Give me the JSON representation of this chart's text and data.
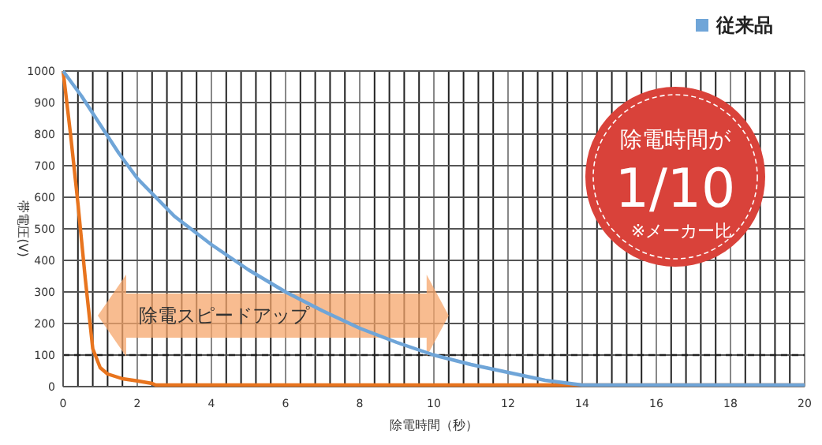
{
  "chart_data": {
    "type": "line",
    "xlabel": "除電時間（秒）",
    "ylabel": "帯電圧(V)",
    "xlim": [
      0,
      20
    ],
    "ylim": [
      0,
      1000
    ],
    "xticks": [
      0,
      {
        "value": 0.4,
        "label": null
      },
      {
        "value": 0.8,
        "label": null
      },
      {
        "value": 1.2,
        "label": null
      },
      {
        "value": 1.6,
        "label": null
      },
      2,
      {
        "value": 2.4,
        "label": null
      },
      {
        "value": 2.8,
        "label": null
      },
      {
        "value": 3.2,
        "label": null
      },
      {
        "value": 3.6,
        "label": null
      },
      4,
      {
        "value": 4.4,
        "label": null
      },
      {
        "value": 4.8,
        "label": null
      },
      {
        "value": 5.2,
        "label": null
      },
      {
        "value": 5.6,
        "label": null
      },
      6,
      {
        "value": 6.4,
        "label": null
      },
      {
        "value": 6.8,
        "label": null
      },
      {
        "value": 7.2,
        "label": null
      },
      {
        "value": 7.6,
        "label": null
      },
      8,
      {
        "value": 8.4,
        "label": null
      },
      {
        "value": 8.8,
        "label": null
      },
      {
        "value": 9.2,
        "label": null
      },
      {
        "value": 9.6,
        "label": null
      },
      10,
      {
        "value": 10.4,
        "label": null
      },
      {
        "value": 10.8,
        "label": null
      },
      {
        "value": 11.2,
        "label": null
      },
      {
        "value": 11.6,
        "label": null
      },
      12,
      {
        "value": 12.4,
        "label": null
      },
      {
        "value": 12.8,
        "label": null
      },
      {
        "value": 13.2,
        "label": null
      },
      {
        "value": 13.6,
        "label": null
      },
      14,
      {
        "value": 14.4,
        "label": null
      },
      {
        "value": 14.8,
        "label": null
      },
      {
        "value": 15.2,
        "label": null
      },
      {
        "value": 15.6,
        "label": null
      },
      16,
      {
        "value": 16.4,
        "label": null
      },
      {
        "value": 16.8,
        "label": null
      },
      {
        "value": 17.2,
        "label": null
      },
      {
        "value": 17.6,
        "label": null
      },
      18,
      {
        "value": 18.4,
        "label": null
      },
      {
        "value": 18.8,
        "label": null
      },
      {
        "value": 19.2,
        "label": null
      },
      {
        "value": 19.6,
        "label": null
      },
      20
    ],
    "yticks": [
      0,
      100,
      200,
      300,
      400,
      500,
      600,
      700,
      800,
      900,
      1000
    ],
    "grid": true,
    "legend": "top right",
    "marker": "none",
    "line_style": "solid",
    "series": [
      {
        "color": "#e8741e",
        "x": [
          0,
          0.2,
          0.4,
          0.6,
          0.8,
          1,
          1.2,
          1.6,
          2,
          2.4,
          2.5,
          20
        ],
        "values": [
          1000,
          800,
          580,
          340,
          120,
          60,
          40,
          25,
          18,
          10,
          5,
          5
        ]
      },
      {
        "name": "従来品",
        "color": "#6fa5d8",
        "x": [
          0,
          0.5,
          1,
          1.5,
          2,
          3,
          4,
          5,
          6,
          7,
          8,
          9,
          10,
          11,
          12,
          13,
          14,
          20
        ],
        "values": [
          1000,
          920,
          830,
          740,
          660,
          540,
          450,
          370,
          300,
          240,
          185,
          140,
          100,
          70,
          45,
          20,
          5,
          5
        ]
      }
    ],
    "ref_lines": [
      {
        "axis": "y",
        "value": 100,
        "color": "#222222",
        "line_style": "dashed"
      }
    ],
    "annotations": [
      "除電スピードアップ",
      "除電時間が",
      "1/10",
      "※メーカー比"
    ]
  }
}
